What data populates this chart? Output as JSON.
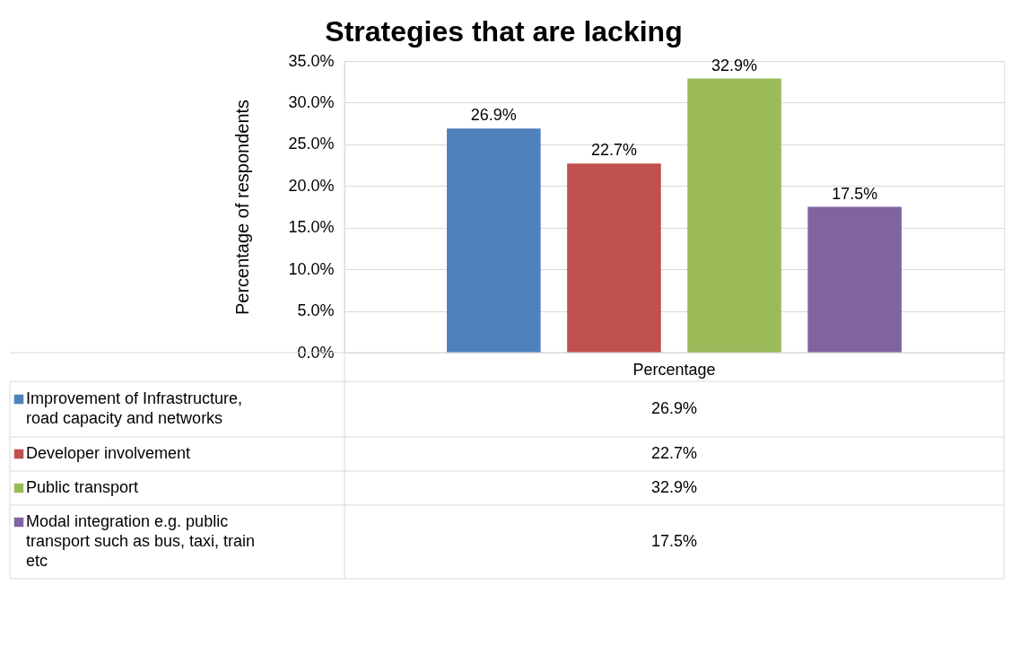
{
  "chart_data": {
    "type": "bar",
    "title": "Strategies that are lacking",
    "ylabel": "Percentage of respondents",
    "categories": [
      "Percentage"
    ],
    "series": [
      {
        "name": "Improvement of Infrastructure, road capacity and networks",
        "color": "#4f81bd",
        "values": [
          26.9
        ],
        "value_labels": [
          "26.9%"
        ]
      },
      {
        "name": "Developer involvement",
        "color": "#c0504d",
        "values": [
          22.7
        ],
        "value_labels": [
          "22.7%"
        ]
      },
      {
        "name": "Public transport",
        "color": "#9bbb59",
        "values": [
          32.9
        ],
        "value_labels": [
          "32.9%"
        ]
      },
      {
        "name": "Modal integration e.g. public transport such as bus, taxi, train etc",
        "color": "#8064a2",
        "values": [
          17.5
        ],
        "value_labels": [
          "17.5%"
        ]
      }
    ],
    "ylim": [
      0,
      35
    ],
    "yticks": [
      {
        "value": 0,
        "label": "0.0%"
      },
      {
        "value": 5,
        "label": "5.0%"
      },
      {
        "value": 10,
        "label": "10.0%"
      },
      {
        "value": 15,
        "label": "15.0%"
      },
      {
        "value": 20,
        "label": "20.0%"
      },
      {
        "value": 25,
        "label": "25.0%"
      },
      {
        "value": 30,
        "label": "30.0%"
      },
      {
        "value": 35,
        "label": "35.0%"
      }
    ],
    "grid": "y",
    "legend": "bottom"
  }
}
